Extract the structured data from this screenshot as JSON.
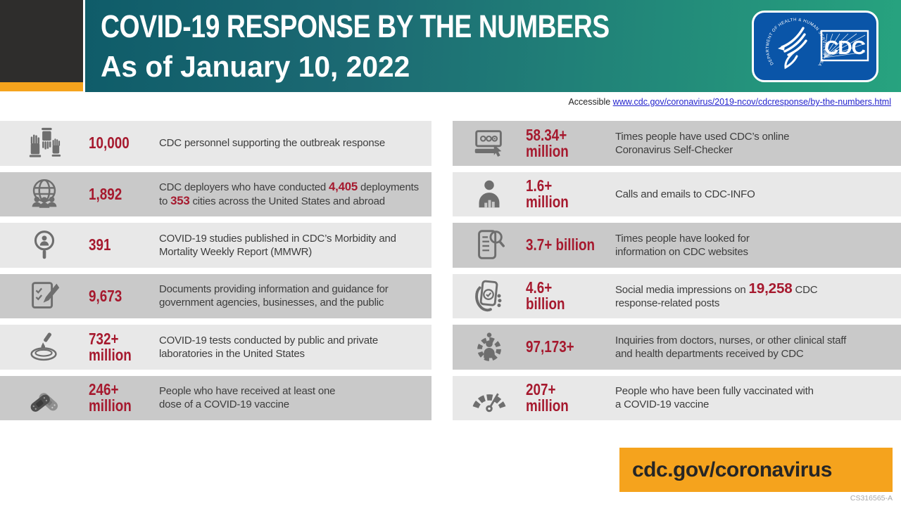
{
  "header": {
    "title": "COVID-19 RESPONSE BY THE NUMBERS",
    "subtitle": "As of January 10, 2022",
    "logo": {
      "agency_text": "DEPARTMENT OF HEALTH & HUMAN SERVICES USA",
      "wordmark": "CDC"
    }
  },
  "accessible": {
    "label": "Accessible",
    "url": "www.cdc.gov/coronavirus/2019-ncov/cdcresponse/by-the-numbers.html"
  },
  "colors": {
    "accent_red": "#a6192e",
    "header_teal_left": "#0f5c69",
    "header_green_right": "#27a37f",
    "row_light": "#e8e8e8",
    "row_dark": "#c9c9c9",
    "orange": "#f5a31d",
    "logo_blue": "#0a55a8",
    "icon_gray": "#6e6e6e",
    "corner_dark": "#2e2d2c"
  },
  "stats": {
    "left": [
      {
        "icon": "helping-hands-icon",
        "value": "10,000",
        "desc": [
          {
            "t": "CDC personnel supporting the outbreak response"
          }
        ]
      },
      {
        "icon": "globe-people-icon",
        "value": "1,892",
        "desc": [
          {
            "t": "CDC deployers who have conducted "
          },
          {
            "t": "4,405",
            "red": true
          },
          {
            "t": " deployments\nto "
          },
          {
            "t": "353",
            "red": true
          },
          {
            "t": " cities across the United States and abroad"
          }
        ]
      },
      {
        "icon": "search-person-icon",
        "value": "391",
        "desc": [
          {
            "t": "COVID-19 studies published in CDC’s Morbidity and\nMortality Weekly Report (MMWR)"
          }
        ]
      },
      {
        "icon": "document-pen-icon",
        "value": "9,673",
        "desc": [
          {
            "t": "Documents providing information and guidance for\ngovernment agencies, businesses, and the public"
          }
        ]
      },
      {
        "icon": "petri-dish-test-icon",
        "value": "732+",
        "unit": "million",
        "desc": [
          {
            "t": "COVID-19 tests conducted by public and private\nlaboratories in the United States"
          }
        ]
      },
      {
        "icon": "vaccine-bandage-icon",
        "value": "246+",
        "unit": "million",
        "desc": [
          {
            "t": "People who have received at least one\ndose of a COVID-19 vaccine"
          }
        ]
      }
    ],
    "right": [
      {
        "icon": "self-checker-screen-icon",
        "value": "58.34+",
        "unit": "million",
        "desc": [
          {
            "t": "Times people have used CDC’s online\nCoronavirus Self-Checker"
          }
        ]
      },
      {
        "icon": "person-chart-icon",
        "value": "1.6+",
        "unit": "million",
        "desc": [
          {
            "t": "Calls and emails to CDC-INFO"
          }
        ]
      },
      {
        "icon": "phone-search-icon",
        "value": "3.7+ billion",
        "desc": [
          {
            "t": "Times people have looked for\ninformation  on CDC websites"
          }
        ]
      },
      {
        "icon": "phone-check-icon",
        "value": "4.6+",
        "unit": "billion",
        "desc": [
          {
            "t": "Social media impressions on "
          },
          {
            "t": "19,258",
            "red": true,
            "big": true
          },
          {
            "t": " CDC\nresponse-related posts"
          }
        ]
      },
      {
        "icon": "person-gear-icon",
        "value": "97,173+",
        "desc": [
          {
            "t": "Inquiries from doctors, nurses, or other clinical staff\nand health departments received by CDC"
          }
        ]
      },
      {
        "icon": "gauge-icon",
        "value": "207+",
        "unit": "million",
        "desc": [
          {
            "t": "People who have been fully vaccinated with\na COVID-19 vaccine"
          }
        ]
      }
    ]
  },
  "footer": {
    "url": "cdc.gov/coronavirus",
    "doc_id": "CS316565-A"
  }
}
